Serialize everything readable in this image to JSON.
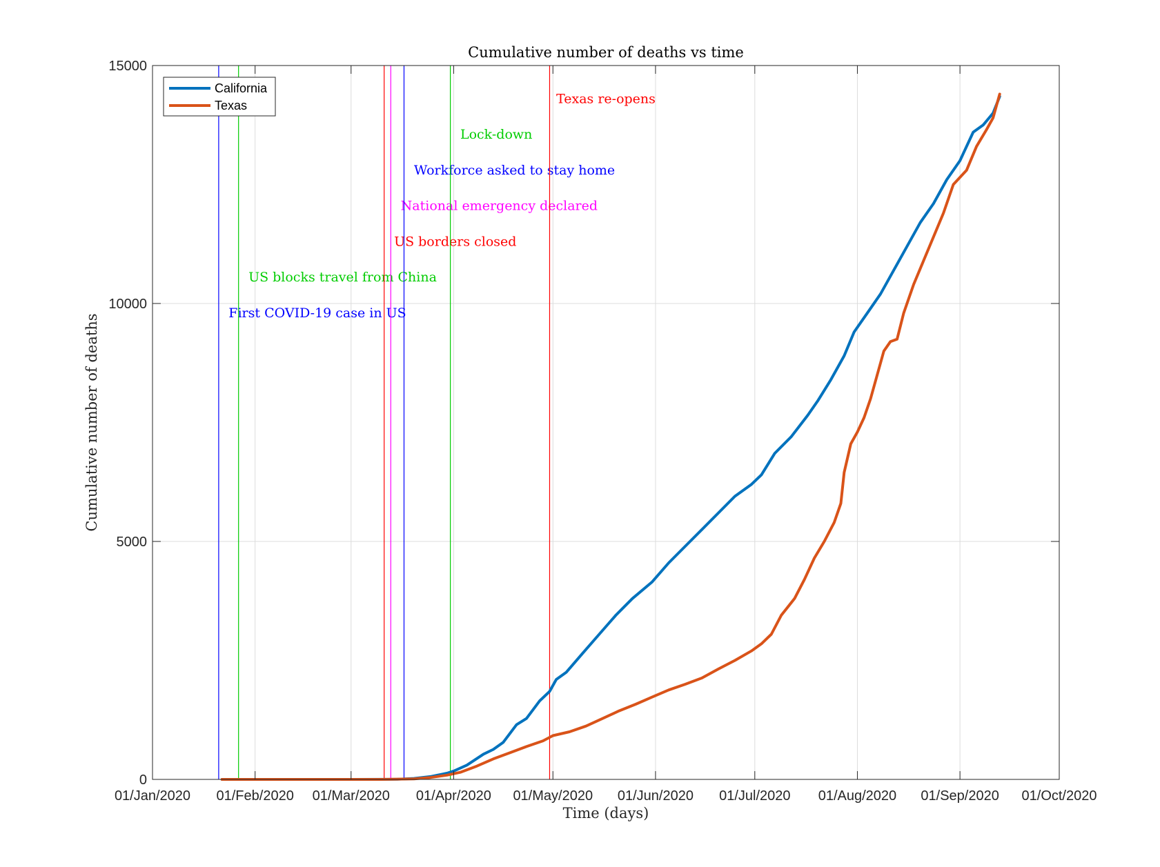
{
  "chart_data": {
    "type": "line",
    "title": "Cumulative number of deaths vs time",
    "xlabel": "Time (days)",
    "ylabel": "Cumulative number of deaths",
    "xlim": [
      "2020-01-01",
      "2020-10-01"
    ],
    "ylim": [
      0,
      15000
    ],
    "grid": true,
    "legend_position": "top-left",
    "x_ticks": [
      "2020-01-01",
      "2020-02-01",
      "2020-03-01",
      "2020-04-01",
      "2020-05-01",
      "2020-06-01",
      "2020-07-01",
      "2020-08-01",
      "2020-09-01",
      "2020-10-01"
    ],
    "x_tick_labels": [
      "01/Jan/2020",
      "01/Feb/2020",
      "01/Mar/2020",
      "01/Apr/2020",
      "01/May/2020",
      "01/Jun/2020",
      "01/Jul/2020",
      "01/Aug/2020",
      "01/Sep/2020",
      "01/Oct/2020"
    ],
    "y_ticks": [
      0,
      5000,
      10000,
      15000
    ],
    "y_tick_labels": [
      "0",
      "5000",
      "10000",
      "15000"
    ],
    "series": [
      {
        "name": "California",
        "color": "#0072BD",
        "points": [
          [
            "2020-01-22",
            0
          ],
          [
            "2020-02-29",
            0
          ],
          [
            "2020-03-10",
            2
          ],
          [
            "2020-03-15",
            5
          ],
          [
            "2020-03-20",
            20
          ],
          [
            "2020-03-25",
            60
          ],
          [
            "2020-03-30",
            130
          ],
          [
            "2020-04-01",
            175
          ],
          [
            "2020-04-05",
            300
          ],
          [
            "2020-04-10",
            530
          ],
          [
            "2020-04-13",
            630
          ],
          [
            "2020-04-16",
            780
          ],
          [
            "2020-04-20",
            1150
          ],
          [
            "2020-04-23",
            1280
          ],
          [
            "2020-04-27",
            1650
          ],
          [
            "2020-04-30",
            1850
          ],
          [
            "2020-05-02",
            2100
          ],
          [
            "2020-05-05",
            2250
          ],
          [
            "2020-05-10",
            2650
          ],
          [
            "2020-05-15",
            3050
          ],
          [
            "2020-05-20",
            3450
          ],
          [
            "2020-05-25",
            3800
          ],
          [
            "2020-05-31",
            4150
          ],
          [
            "2020-06-05",
            4550
          ],
          [
            "2020-06-10",
            4900
          ],
          [
            "2020-06-15",
            5250
          ],
          [
            "2020-06-20",
            5600
          ],
          [
            "2020-06-25",
            5950
          ],
          [
            "2020-06-30",
            6200
          ],
          [
            "2020-07-03",
            6400
          ],
          [
            "2020-07-07",
            6850
          ],
          [
            "2020-07-12",
            7200
          ],
          [
            "2020-07-17",
            7650
          ],
          [
            "2020-07-20",
            7950
          ],
          [
            "2020-07-24",
            8400
          ],
          [
            "2020-07-28",
            8900
          ],
          [
            "2020-07-31",
            9400
          ],
          [
            "2020-08-04",
            9800
          ],
          [
            "2020-08-08",
            10200
          ],
          [
            "2020-08-12",
            10700
          ],
          [
            "2020-08-16",
            11200
          ],
          [
            "2020-08-20",
            11700
          ],
          [
            "2020-08-24",
            12100
          ],
          [
            "2020-08-28",
            12600
          ],
          [
            "2020-09-01",
            13000
          ],
          [
            "2020-09-05",
            13600
          ],
          [
            "2020-09-08",
            13750
          ],
          [
            "2020-09-11",
            14000
          ],
          [
            "2020-09-13",
            14350
          ]
        ]
      },
      {
        "name": "Texas",
        "color": "#D95319",
        "points": [
          [
            "2020-01-22",
            0
          ],
          [
            "2020-03-10",
            0
          ],
          [
            "2020-03-20",
            10
          ],
          [
            "2020-03-25",
            40
          ],
          [
            "2020-03-30",
            90
          ],
          [
            "2020-04-03",
            150
          ],
          [
            "2020-04-08",
            280
          ],
          [
            "2020-04-13",
            430
          ],
          [
            "2020-04-18",
            560
          ],
          [
            "2020-04-23",
            690
          ],
          [
            "2020-04-28",
            810
          ],
          [
            "2020-05-01",
            920
          ],
          [
            "2020-05-06",
            1000
          ],
          [
            "2020-05-11",
            1120
          ],
          [
            "2020-05-16",
            1280
          ],
          [
            "2020-05-21",
            1440
          ],
          [
            "2020-05-26",
            1580
          ],
          [
            "2020-05-31",
            1730
          ],
          [
            "2020-06-05",
            1880
          ],
          [
            "2020-06-10",
            2000
          ],
          [
            "2020-06-15",
            2130
          ],
          [
            "2020-06-20",
            2320
          ],
          [
            "2020-06-25",
            2500
          ],
          [
            "2020-06-30",
            2700
          ],
          [
            "2020-07-03",
            2850
          ],
          [
            "2020-07-06",
            3050
          ],
          [
            "2020-07-09",
            3450
          ],
          [
            "2020-07-13",
            3800
          ],
          [
            "2020-07-16",
            4200
          ],
          [
            "2020-07-19",
            4650
          ],
          [
            "2020-07-22",
            5000
          ],
          [
            "2020-07-25",
            5400
          ],
          [
            "2020-07-27",
            5800
          ],
          [
            "2020-07-28",
            6450
          ],
          [
            "2020-07-30",
            7050
          ],
          [
            "2020-08-01",
            7300
          ],
          [
            "2020-08-03",
            7600
          ],
          [
            "2020-08-05",
            8000
          ],
          [
            "2020-08-07",
            8500
          ],
          [
            "2020-08-09",
            9000
          ],
          [
            "2020-08-11",
            9200
          ],
          [
            "2020-08-13",
            9250
          ],
          [
            "2020-08-15",
            9800
          ],
          [
            "2020-08-18",
            10400
          ],
          [
            "2020-08-21",
            10900
          ],
          [
            "2020-08-24",
            11400
          ],
          [
            "2020-08-27",
            11900
          ],
          [
            "2020-08-30",
            12500
          ],
          [
            "2020-09-03",
            12800
          ],
          [
            "2020-09-06",
            13300
          ],
          [
            "2020-09-09",
            13650
          ],
          [
            "2020-09-11",
            13900
          ],
          [
            "2020-09-13",
            14400
          ]
        ]
      }
    ],
    "event_lines": [
      {
        "date": "2020-01-21",
        "label": "First COVID-19 case in US",
        "color": "#0000FF",
        "label_date": "2020-01-24",
        "label_y": 9800
      },
      {
        "date": "2020-01-27",
        "label": "US blocks travel from China",
        "color": "#00CC00",
        "label_date": "2020-01-30",
        "label_y": 10550
      },
      {
        "date": "2020-03-11",
        "label": "US borders closed",
        "color": "#FF0000",
        "label_date": "2020-03-14",
        "label_y": 11300
      },
      {
        "date": "2020-03-13",
        "label": "National emergency declared",
        "color": "#FF00FF",
        "label_date": "2020-03-16",
        "label_y": 12050
      },
      {
        "date": "2020-03-17",
        "label": "Workforce asked to stay home",
        "color": "#0000FF",
        "label_date": "2020-03-20",
        "label_y": 12800
      },
      {
        "date": "2020-03-31",
        "label": "Lock-down",
        "color": "#00CC00",
        "label_date": "2020-04-03",
        "label_y": 13550
      },
      {
        "date": "2020-04-30",
        "label": "Texas re-opens",
        "color": "#FF0000",
        "label_date": "2020-05-02",
        "label_y": 14300
      }
    ]
  }
}
